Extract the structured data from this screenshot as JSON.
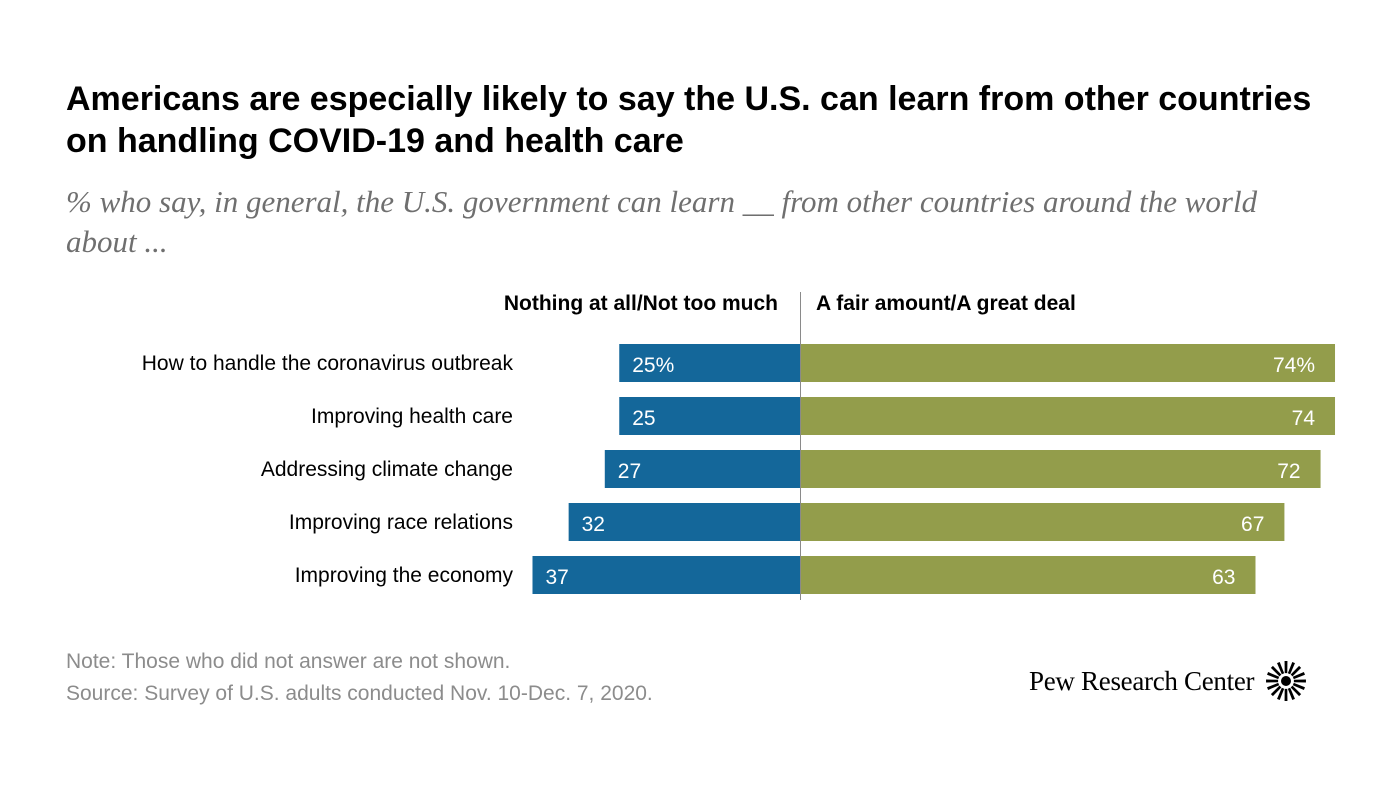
{
  "title": "Americans are especially likely to say the U.S. can learn from other countries on handling COVID-19 and health care",
  "subtitle": "% who say, in general, the U.S. government can learn __ from other countries around the world about ...",
  "chart_data": {
    "type": "bar",
    "orientation": "horizontal-diverging",
    "categories": [
      "How to handle the coronavirus outbreak",
      "Improving health care",
      "Addressing climate change",
      "Improving race relations",
      "Improving the economy"
    ],
    "series": [
      {
        "name": "Nothing at all/Not too much",
        "color": "#14679a",
        "direction": "left",
        "values": [
          25,
          25,
          27,
          32,
          37
        ],
        "labels": [
          "25%",
          "25",
          "27",
          "32",
          "37"
        ]
      },
      {
        "name": "A fair amount/A great deal",
        "color": "#939d4b",
        "direction": "right",
        "values": [
          74,
          74,
          72,
          67,
          63
        ],
        "labels": [
          "74%",
          "74",
          "72",
          "67",
          "63"
        ]
      }
    ],
    "unit": "%",
    "xlim": [
      0,
      100
    ]
  },
  "footer": {
    "note": "Note: Those who did not answer are not shown.",
    "source": "Source: Survey of U.S. adults conducted Nov. 10-Dec. 7, 2020."
  },
  "brand": {
    "name": "Pew Research Center",
    "logo_icon": "pew-sunburst-icon"
  }
}
